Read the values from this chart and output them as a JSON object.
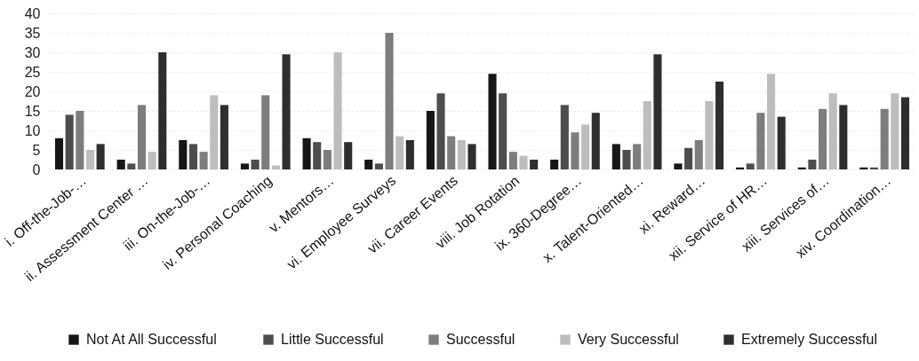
{
  "chart_data": {
    "type": "bar",
    "categories": [
      "i. Off-the-Job-…",
      "ii. Assessment Center …",
      "iii. On-the-Job-…",
      "iv. Personal Coaching",
      "v. Mentors…",
      "vi. Employee Surveys",
      "vii. Career Events",
      "viii. Job Rotation",
      "ix. 360-Degree…",
      "x. Talent-Oriented…",
      "xi. Reward…",
      "xii. Service of HR…",
      "xiii. Services of…",
      "xiv. Coordination…"
    ],
    "series": [
      {
        "name": "Not At All Successful",
        "color": "#161616",
        "values": [
          8,
          2.5,
          7.5,
          1.5,
          8,
          2.5,
          15,
          24.5,
          2.5,
          6.5,
          1.5,
          0.5,
          0.5,
          0.5
        ]
      },
      {
        "name": "Little Successful",
        "color": "#4d4d4d",
        "values": [
          14,
          1.5,
          6.5,
          2.5,
          7,
          1.5,
          19.5,
          19.5,
          16.5,
          5,
          5.5,
          1.5,
          2.5,
          0.5
        ]
      },
      {
        "name": "Successful",
        "color": "#7d7d7d",
        "values": [
          15,
          16.5,
          4.5,
          19,
          5,
          35,
          8.5,
          4.5,
          9.5,
          6.5,
          7.5,
          14.5,
          15.5,
          15.5
        ]
      },
      {
        "name": "Very Successful",
        "color": "#bdbdbd",
        "values": [
          5,
          4.5,
          19,
          1,
          30,
          8.5,
          7.5,
          3.5,
          11.5,
          17.5,
          17.5,
          24.5,
          19.5,
          19.5
        ]
      },
      {
        "name": "Extremely Successful",
        "color": "#2e2e2e",
        "values": [
          6.5,
          30,
          16.5,
          29.5,
          7,
          7.5,
          6.5,
          2.5,
          14.5,
          29.5,
          22.5,
          13.5,
          16.5,
          18.5
        ]
      }
    ],
    "ylim": [
      0,
      40
    ],
    "yticks": [
      0,
      5,
      10,
      15,
      20,
      25,
      30,
      35,
      40
    ],
    "grid": "y",
    "legend": "bottom"
  }
}
